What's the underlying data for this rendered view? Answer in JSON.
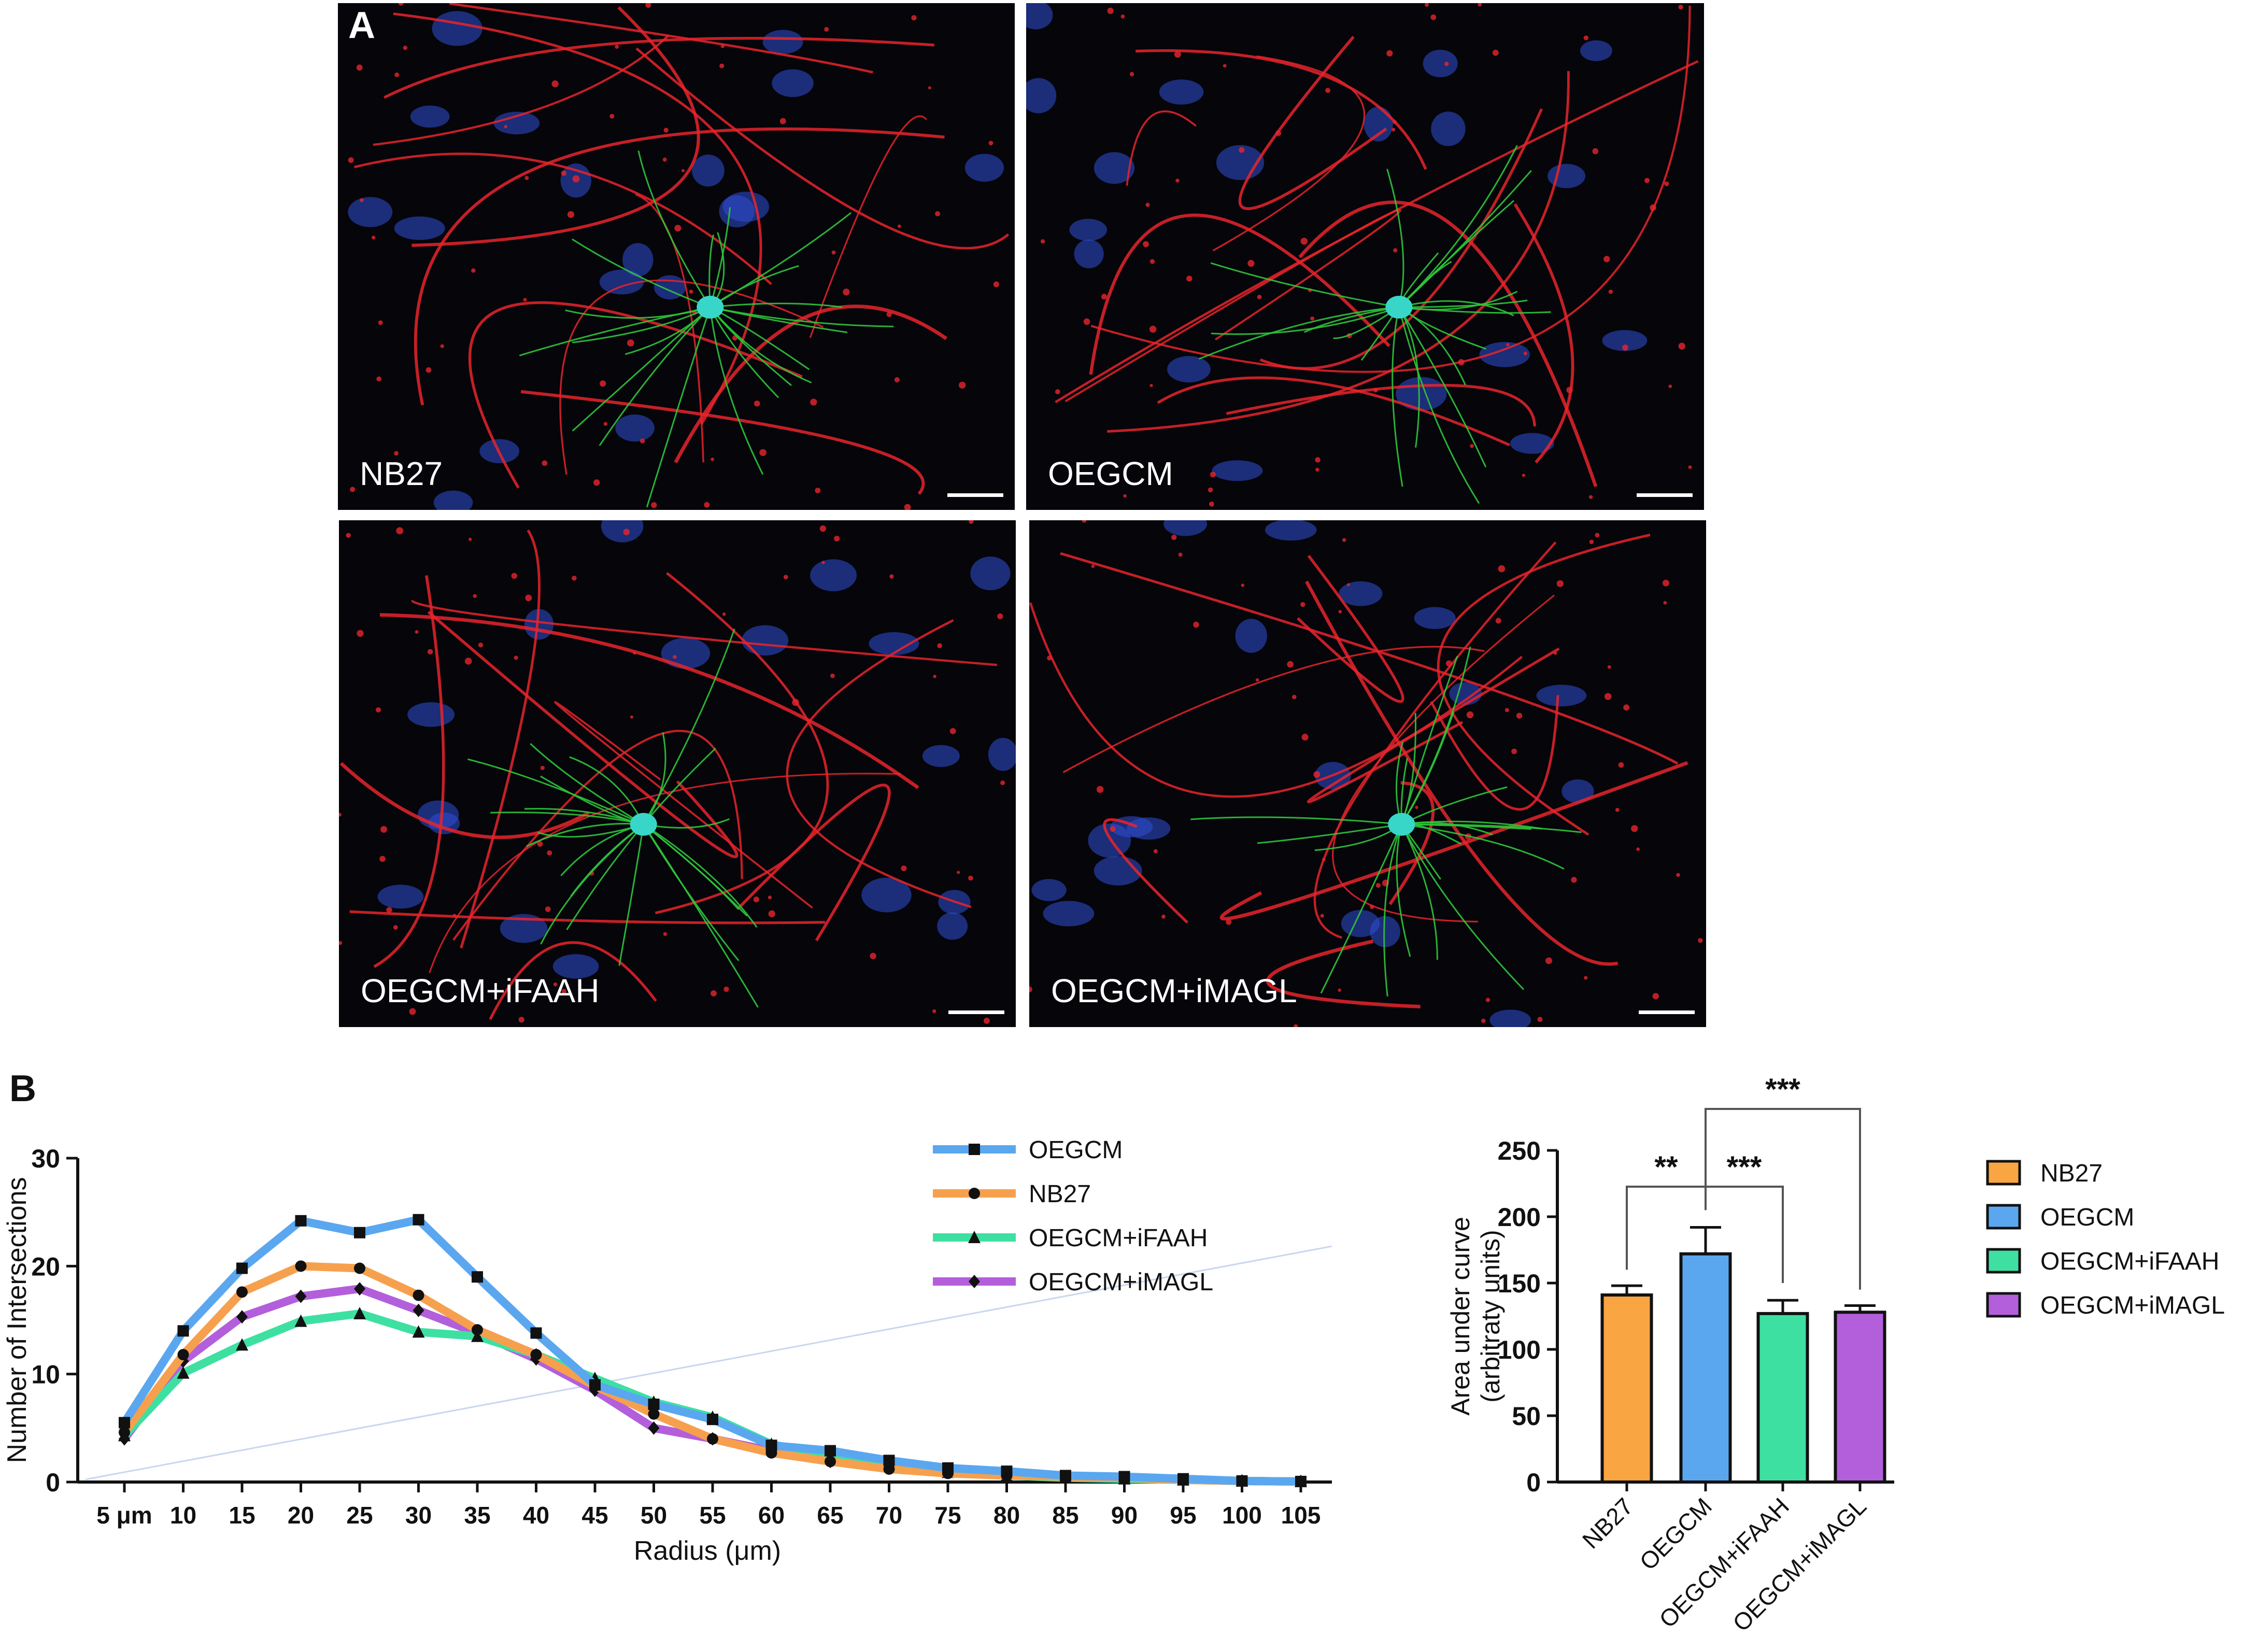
{
  "panelA": {
    "label": "A",
    "images": [
      {
        "label": "NB27"
      },
      {
        "label": "OEGCM"
      },
      {
        "label": "OEGCM+iFAAH"
      },
      {
        "label": "OEGCM+iMAGL"
      }
    ],
    "colors": {
      "neurite": "#e8242c",
      "astro": "#2fc43a",
      "nuclei": "#2f4fd6",
      "soma": "#38d6c8"
    }
  },
  "panelB": {
    "label": "B"
  },
  "chart_data": [
    {
      "type": "line",
      "xlabel": "Radius (μm)",
      "ylabel": "Number of Intersections",
      "categories": [
        "5 μm",
        "10",
        "15",
        "20",
        "25",
        "30",
        "35",
        "40",
        "45",
        "50",
        "55",
        "60",
        "65",
        "70",
        "75",
        "80",
        "85",
        "90",
        "95",
        "100",
        "105"
      ],
      "x": [
        5,
        10,
        15,
        20,
        25,
        30,
        35,
        40,
        45,
        50,
        55,
        60,
        65,
        70,
        75,
        80,
        85,
        90,
        95,
        100,
        105
      ],
      "ylim": [
        0,
        30
      ],
      "yticks": [
        0,
        10,
        20,
        30
      ],
      "legend_position": "top-right",
      "series": [
        {
          "name": "OEGCM",
          "color": "#5aa7f0",
          "marker": "square",
          "values": [
            5.5,
            14,
            19.8,
            24.2,
            23.1,
            24.3,
            19,
            13.8,
            9,
            7.2,
            5.8,
            3.4,
            2.9,
            2,
            1.3,
            1,
            0.6,
            0.5,
            0.3,
            0.1,
            0.05
          ]
        },
        {
          "name": "NB27",
          "color": "#f6a04e",
          "marker": "circle",
          "values": [
            4.6,
            11.8,
            17.6,
            20,
            19.8,
            17.3,
            14.1,
            11.8,
            8.9,
            6.3,
            4,
            2.7,
            1.9,
            1.2,
            0.8,
            0.6,
            0.5,
            0.4,
            0.2,
            0.1,
            0.05
          ]
        },
        {
          "name": "OEGCM+iFAAH",
          "color": "#3ee0a2",
          "marker": "triangle",
          "values": [
            4.3,
            10.1,
            12.7,
            14.9,
            15.6,
            13.9,
            13.5,
            11.8,
            9.6,
            7.4,
            6,
            3.5,
            2.3,
            1.5,
            0.9,
            0.6,
            0.4,
            0.3,
            0.2,
            0.1,
            0.05
          ]
        },
        {
          "name": "OEGCM+iMAGL",
          "color": "#b35fdc",
          "marker": "diamond",
          "values": [
            4,
            11.2,
            15.3,
            17.2,
            17.9,
            15.9,
            13.8,
            11.4,
            8.5,
            5,
            4,
            2.9,
            1.9,
            1.3,
            0.9,
            0.7,
            0.5,
            0.4,
            0.2,
            0.1,
            0.05
          ]
        }
      ]
    },
    {
      "type": "bar",
      "ylabel": "Area under curve\n(arbitraty units)",
      "categories": [
        "NB27",
        "OEGCM",
        "OEGCM+iFAAH",
        "OEGCM+iMAGL"
      ],
      "ylim": [
        0,
        250
      ],
      "yticks": [
        0,
        50,
        100,
        150,
        200,
        250
      ],
      "legend_position": "right",
      "series": [
        {
          "name": "NB27",
          "color": "#f8a542",
          "value": 141,
          "error": 7
        },
        {
          "name": "OEGCM",
          "color": "#5aa7f0",
          "value": 172,
          "error": 20
        },
        {
          "name": "OEGCM+iFAAH",
          "color": "#3ee0a2",
          "value": 127,
          "error": 10
        },
        {
          "name": "OEGCM+iMAGL",
          "color": "#b35fdc",
          "value": 128,
          "error": 5
        }
      ],
      "significance": [
        {
          "from": "NB27",
          "to": "OEGCM",
          "label": "**"
        },
        {
          "from": "OEGCM",
          "to": "OEGCM+iFAAH",
          "label": "***"
        },
        {
          "from": "OEGCM",
          "to": "OEGCM+iMAGL",
          "label": "***"
        }
      ]
    }
  ]
}
